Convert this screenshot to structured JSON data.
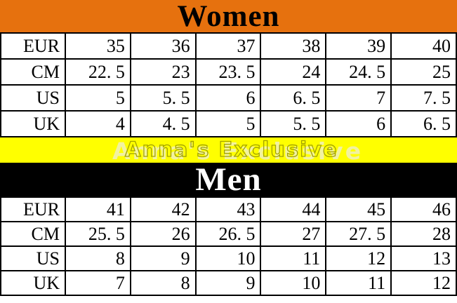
{
  "colors": {
    "women_header_bg": "#E6710E",
    "men_header_bg": "#000000",
    "watermark_band_bg": "#FFFF00",
    "watermark_outline": "#A2A200",
    "watermark_light": "#F2F2A0",
    "table_border": "#000000",
    "women_title_text": "#000000",
    "men_title_text": "#FFFFFF"
  },
  "watermark": {
    "text": "Anna's Exclusive"
  },
  "women": {
    "title": "Women",
    "rows": [
      {
        "label": "EUR",
        "values": [
          "35",
          "36",
          "37",
          "38",
          "39",
          "40"
        ]
      },
      {
        "label": "CM",
        "values": [
          "22. 5",
          "23",
          "23. 5",
          "24",
          "24. 5",
          "25"
        ]
      },
      {
        "label": "US",
        "values": [
          "5",
          "5. 5",
          "6",
          "6. 5",
          "7",
          "7. 5"
        ]
      },
      {
        "label": "UK",
        "values": [
          "4",
          "4. 5",
          "5",
          "5. 5",
          "6",
          "6. 5"
        ]
      }
    ]
  },
  "men": {
    "title": "Men",
    "rows": [
      {
        "label": "EUR",
        "values": [
          "41",
          "42",
          "43",
          "44",
          "45",
          "46"
        ]
      },
      {
        "label": "CM",
        "values": [
          "25. 5",
          "26",
          "26. 5",
          "27",
          "27. 5",
          "28"
        ]
      },
      {
        "label": "US",
        "values": [
          "8",
          "9",
          "10",
          "11",
          "12",
          "13"
        ]
      },
      {
        "label": "UK",
        "values": [
          "7",
          "8",
          "9",
          "10",
          "11",
          "12"
        ]
      }
    ]
  },
  "chart_data": [
    {
      "type": "table",
      "title": "Women",
      "row_headers": [
        "EUR",
        "CM",
        "US",
        "UK"
      ],
      "rows": [
        [
          35,
          36,
          37,
          38,
          39,
          40
        ],
        [
          22.5,
          23,
          23.5,
          24,
          24.5,
          25
        ],
        [
          5,
          5.5,
          6,
          6.5,
          7,
          7.5
        ],
        [
          4,
          4.5,
          5,
          5.5,
          6,
          6.5
        ]
      ]
    },
    {
      "type": "table",
      "title": "Men",
      "row_headers": [
        "EUR",
        "CM",
        "US",
        "UK"
      ],
      "rows": [
        [
          41,
          42,
          43,
          44,
          45,
          46
        ],
        [
          25.5,
          26,
          26.5,
          27,
          27.5,
          28
        ],
        [
          8,
          9,
          10,
          11,
          12,
          13
        ],
        [
          7,
          8,
          9,
          10,
          11,
          12
        ]
      ]
    }
  ]
}
